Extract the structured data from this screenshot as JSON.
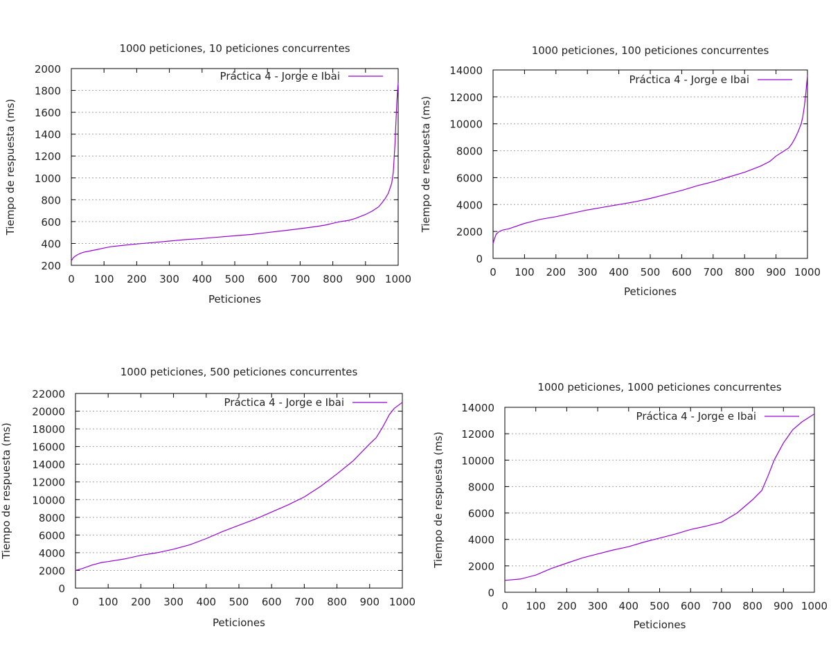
{
  "colors": {
    "series": "#9400d3",
    "grid": "#a0a0a0",
    "axis": "#000000"
  },
  "chart_data": [
    {
      "type": "line",
      "title": "1000 peticiones, 10 peticiones concurrentes",
      "xlabel": "Peticiones",
      "ylabel": "Tiempo de respuesta (ms)",
      "xlim": [
        0,
        1000
      ],
      "ylim": [
        200,
        2000
      ],
      "xticks": [
        0,
        100,
        200,
        300,
        400,
        500,
        600,
        700,
        800,
        900,
        1000
      ],
      "yticks": [
        200,
        400,
        600,
        800,
        1000,
        1200,
        1400,
        1600,
        1800,
        2000
      ],
      "grid": "horizontal",
      "legend_position": "top-right",
      "series": [
        {
          "name": "Práctica 4 - Jorge e Ibai",
          "x": [
            0,
            5,
            10,
            20,
            30,
            40,
            50,
            60,
            80,
            100,
            120,
            150,
            200,
            250,
            300,
            350,
            400,
            450,
            500,
            550,
            600,
            650,
            700,
            750,
            780,
            800,
            820,
            850,
            870,
            900,
            920,
            940,
            950,
            960,
            970,
            980,
            985,
            990,
            993,
            996,
            1000
          ],
          "y": [
            240,
            265,
            280,
            298,
            312,
            322,
            327,
            333,
            345,
            358,
            370,
            380,
            395,
            408,
            422,
            435,
            445,
            458,
            470,
            482,
            500,
            517,
            535,
            555,
            570,
            585,
            598,
            612,
            630,
            665,
            695,
            735,
            770,
            810,
            860,
            950,
            1050,
            1300,
            1500,
            1700,
            1870
          ]
        }
      ]
    },
    {
      "type": "line",
      "title": "1000 peticiones, 100 peticiones concurrentes",
      "xlabel": "Peticiones",
      "ylabel": "Tiempo de respuesta (ms)",
      "xlim": [
        0,
        1000
      ],
      "ylim": [
        0,
        14000
      ],
      "xticks": [
        0,
        100,
        200,
        300,
        400,
        500,
        600,
        700,
        800,
        900,
        1000
      ],
      "yticks": [
        0,
        2000,
        4000,
        6000,
        8000,
        10000,
        12000,
        14000
      ],
      "grid": "horizontal",
      "legend_position": "top-right",
      "series": [
        {
          "name": "Práctica 4 - Jorge e Ibai",
          "x": [
            0,
            5,
            10,
            20,
            30,
            50,
            100,
            150,
            200,
            250,
            300,
            350,
            400,
            450,
            500,
            550,
            600,
            650,
            700,
            750,
            800,
            850,
            880,
            900,
            920,
            940,
            950,
            960,
            970,
            980,
            985,
            990,
            995,
            1000
          ],
          "y": [
            1100,
            1500,
            1800,
            2000,
            2100,
            2200,
            2600,
            2900,
            3100,
            3350,
            3600,
            3800,
            4000,
            4200,
            4450,
            4750,
            5050,
            5400,
            5700,
            6050,
            6400,
            6850,
            7200,
            7600,
            7900,
            8200,
            8500,
            8900,
            9400,
            10000,
            10500,
            11300,
            12300,
            13600
          ]
        }
      ]
    },
    {
      "type": "line",
      "title": "1000 peticiones, 500 peticiones concurrentes",
      "xlabel": "Peticiones",
      "ylabel": "Tiempo de respuesta (ms)",
      "xlim": [
        0,
        1000
      ],
      "ylim": [
        0,
        22000
      ],
      "xticks": [
        0,
        100,
        200,
        300,
        400,
        500,
        600,
        700,
        800,
        900,
        1000
      ],
      "yticks": [
        0,
        2000,
        4000,
        6000,
        8000,
        10000,
        12000,
        14000,
        16000,
        18000,
        20000,
        22000
      ],
      "grid": "horizontal",
      "legend_position": "top-right",
      "series": [
        {
          "name": "Práctica 4 - Jorge e Ibai",
          "x": [
            0,
            20,
            50,
            80,
            100,
            150,
            200,
            250,
            300,
            350,
            400,
            450,
            500,
            550,
            600,
            650,
            700,
            750,
            800,
            850,
            900,
            920,
            940,
            960,
            975,
            1000
          ],
          "y": [
            2000,
            2200,
            2600,
            2900,
            3000,
            3300,
            3700,
            4000,
            4400,
            4900,
            5600,
            6400,
            7100,
            7800,
            8600,
            9400,
            10300,
            11500,
            12900,
            14400,
            16300,
            17000,
            18200,
            19600,
            20300,
            21000
          ]
        }
      ]
    },
    {
      "type": "line",
      "title": "1000 peticiones, 1000 peticiones concurrentes",
      "xlabel": "Peticiones",
      "ylabel": "Tiempo de respuesta (ms)",
      "xlim": [
        0,
        1000
      ],
      "ylim": [
        0,
        14000
      ],
      "xticks": [
        0,
        100,
        200,
        300,
        400,
        500,
        600,
        700,
        800,
        900,
        1000
      ],
      "yticks": [
        0,
        2000,
        4000,
        6000,
        8000,
        10000,
        12000,
        14000
      ],
      "grid": "horizontal",
      "legend_position": "top-right",
      "series": [
        {
          "name": "Práctica 4 - Jorge e Ibai",
          "x": [
            0,
            50,
            100,
            150,
            200,
            250,
            300,
            350,
            400,
            450,
            500,
            550,
            600,
            650,
            700,
            750,
            800,
            830,
            850,
            870,
            900,
            930,
            960,
            1000
          ],
          "y": [
            900,
            1000,
            1300,
            1800,
            2200,
            2600,
            2900,
            3200,
            3450,
            3800,
            4100,
            4400,
            4750,
            5000,
            5300,
            6000,
            7000,
            7700,
            8800,
            10000,
            11300,
            12300,
            12900,
            13500
          ]
        }
      ]
    }
  ]
}
